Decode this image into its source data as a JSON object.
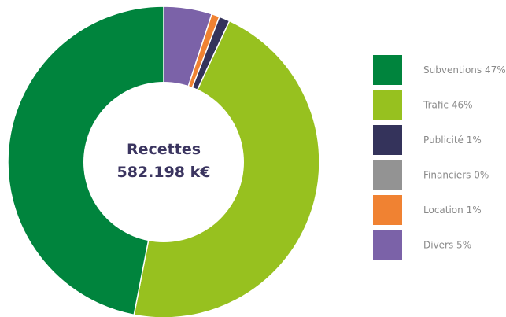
{
  "chart_data": {
    "type": "pie",
    "center_label": {
      "line1": "Recettes",
      "line2": "582.198 k€"
    },
    "slices": [
      {
        "name": "Subventions",
        "value": 47,
        "color": "#00843d",
        "label": "Subventions 47%"
      },
      {
        "name": "Trafic",
        "value": 46,
        "color": "#97c11f",
        "label": "Trafic 46%"
      },
      {
        "name": "Publicité",
        "value": 1,
        "color": "#34335b",
        "label": "Publicité 1%"
      },
      {
        "name": "Financiers",
        "value": 0,
        "color": "#939393",
        "label": "Financiers 0%"
      },
      {
        "name": "Location",
        "value": 1,
        "color": "#f08232",
        "label": "Location 1%"
      },
      {
        "name": "Divers",
        "value": 5,
        "color": "#7b62a8",
        "label": "Divers 5%"
      }
    ],
    "legend_position": "right"
  }
}
